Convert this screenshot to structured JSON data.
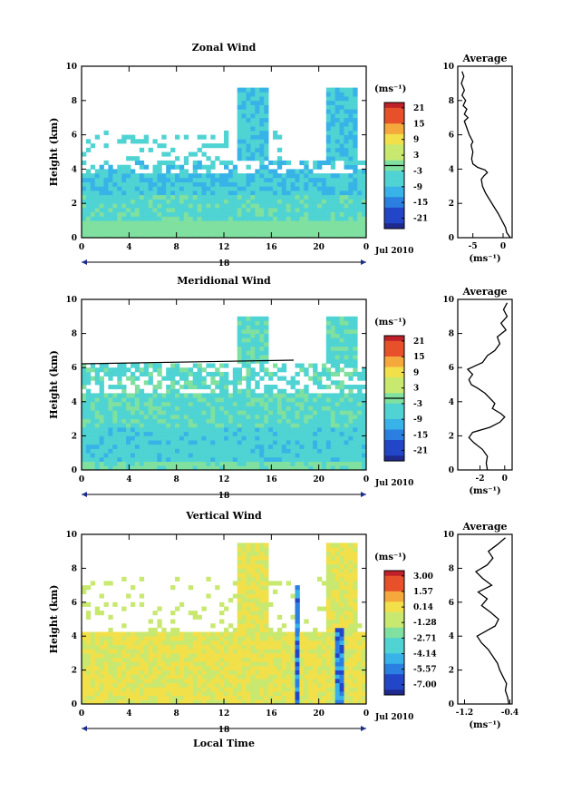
{
  "chart_data": [
    {
      "type": "heatmap",
      "title": "Zonal Wind",
      "xlabel": "",
      "ylabel": "Height (km)",
      "xticks": [
        "0",
        "4",
        "8",
        "12",
        "16",
        "20",
        "0"
      ],
      "yticks": [
        "0",
        "2",
        "4",
        "6",
        "8",
        "10"
      ],
      "ylim": [
        0,
        10
      ],
      "date_day": "18",
      "date_month": "Jul 2010",
      "colorbar": {
        "unit": "(ms⁻¹)",
        "labels": [
          "21",
          "15",
          "9",
          "3",
          "-3",
          "-9",
          "-15",
          "-21"
        ],
        "zero_line": true
      },
      "average": {
        "title": "Average",
        "xticks": [
          "-5",
          "0"
        ],
        "xlim": [
          -7.5,
          1.5
        ],
        "yticks": [
          "0",
          "2",
          "4",
          "6",
          "8",
          "10"
        ],
        "unit": "(ms⁻¹)",
        "profile": [
          [
            1.2,
            0
          ],
          [
            0.6,
            0.3
          ],
          [
            0.4,
            0.6
          ],
          [
            -0.2,
            1.0
          ],
          [
            -0.8,
            1.4
          ],
          [
            -1.5,
            1.8
          ],
          [
            -2.2,
            2.2
          ],
          [
            -2.9,
            2.6
          ],
          [
            -3.4,
            3.0
          ],
          [
            -3.6,
            3.4
          ],
          [
            -3.2,
            3.6
          ],
          [
            -2.6,
            3.8
          ],
          [
            -3.0,
            3.95
          ],
          [
            -4.2,
            4.1
          ],
          [
            -5.0,
            4.3
          ],
          [
            -5.2,
            4.6
          ],
          [
            -5.0,
            5.0
          ],
          [
            -5.3,
            5.4
          ],
          [
            -5.0,
            5.6
          ],
          [
            -5.6,
            6.0
          ],
          [
            -6.0,
            6.4
          ],
          [
            -6.4,
            6.8
          ],
          [
            -5.8,
            7.0
          ],
          [
            -6.4,
            7.2
          ],
          [
            -6.0,
            7.5
          ],
          [
            -6.6,
            7.7
          ],
          [
            -6.2,
            8.0
          ],
          [
            -6.8,
            8.3
          ],
          [
            -6.4,
            8.6
          ],
          [
            -6.9,
            9.0
          ],
          [
            -6.5,
            9.4
          ],
          [
            -6.8,
            9.7
          ]
        ]
      }
    },
    {
      "type": "heatmap",
      "title": "Meridional Wind",
      "xlabel": "",
      "ylabel": "Height (km)",
      "xticks": [
        "0",
        "4",
        "8",
        "12",
        "16",
        "20",
        "0"
      ],
      "yticks": [
        "0",
        "2",
        "4",
        "6",
        "8",
        "10"
      ],
      "ylim": [
        0,
        10
      ],
      "date_day": "18",
      "date_month": "Jul 2010",
      "colorbar": {
        "unit": "(ms⁻¹)",
        "labels": [
          "21",
          "15",
          "9",
          "3",
          "-3",
          "-9",
          "-15",
          "-21"
        ],
        "zero_line": true
      },
      "average": {
        "title": "Average",
        "xticks": [
          "-2",
          "0"
        ],
        "xlim": [
          -3.8,
          0.6
        ],
        "yticks": [
          "0",
          "2",
          "4",
          "6",
          "8",
          "10"
        ],
        "unit": "(ms⁻¹)",
        "profile": [
          [
            -1.4,
            0
          ],
          [
            -1.5,
            0.4
          ],
          [
            -1.4,
            0.8
          ],
          [
            -1.8,
            1.2
          ],
          [
            -2.5,
            1.6
          ],
          [
            -2.9,
            1.9
          ],
          [
            -2.6,
            2.2
          ],
          [
            -1.2,
            2.5
          ],
          [
            -0.4,
            2.8
          ],
          [
            0.0,
            3.1
          ],
          [
            -0.3,
            3.3
          ],
          [
            -1.0,
            3.6
          ],
          [
            -0.8,
            3.9
          ],
          [
            -1.2,
            4.2
          ],
          [
            -1.6,
            4.5
          ],
          [
            -2.2,
            4.8
          ],
          [
            -2.7,
            5.0
          ],
          [
            -2.9,
            5.3
          ],
          [
            -2.6,
            5.6
          ],
          [
            -3.0,
            5.9
          ],
          [
            -2.4,
            6.1
          ],
          [
            -1.8,
            6.3
          ],
          [
            -1.4,
            6.7
          ],
          [
            -0.8,
            7.0
          ],
          [
            -0.4,
            7.4
          ],
          [
            -0.6,
            7.8
          ],
          [
            0.1,
            8.2
          ],
          [
            -0.3,
            8.6
          ],
          [
            0.2,
            9.0
          ],
          [
            -0.1,
            9.4
          ],
          [
            0.2,
            9.8
          ]
        ]
      }
    },
    {
      "type": "heatmap",
      "title": "Vertical Wind",
      "xlabel": "Local Time",
      "ylabel": "Height (km)",
      "xticks": [
        "0",
        "4",
        "8",
        "12",
        "16",
        "20",
        "0"
      ],
      "yticks": [
        "0",
        "2",
        "4",
        "6",
        "8",
        "10"
      ],
      "ylim": [
        0,
        10
      ],
      "date_day": "18",
      "date_month": "Jul 2010",
      "colorbar": {
        "unit": "(ms⁻¹)",
        "labels": [
          "3.00",
          "1.57",
          "0.14",
          "-1.28",
          "-2.71",
          "-4.14",
          "-5.57",
          "-7.00"
        ],
        "zero_line": false
      },
      "average": {
        "title": "Average",
        "xticks": [
          "-1.2",
          "-0.4"
        ],
        "xlim": [
          -1.32,
          -0.36
        ],
        "yticks": [
          "0",
          "2",
          "4",
          "6",
          "8",
          "10"
        ],
        "unit": "(ms⁻¹)",
        "profile": [
          [
            -0.42,
            0
          ],
          [
            -0.44,
            0.4
          ],
          [
            -0.48,
            0.8
          ],
          [
            -0.46,
            1.2
          ],
          [
            -0.52,
            1.6
          ],
          [
            -0.58,
            2.0
          ],
          [
            -0.62,
            2.4
          ],
          [
            -0.7,
            2.8
          ],
          [
            -0.78,
            3.2
          ],
          [
            -0.9,
            3.6
          ],
          [
            -0.98,
            4.0
          ],
          [
            -0.82,
            4.3
          ],
          [
            -0.66,
            4.6
          ],
          [
            -0.6,
            5.0
          ],
          [
            -0.74,
            5.4
          ],
          [
            -0.9,
            5.8
          ],
          [
            -0.8,
            6.2
          ],
          [
            -0.96,
            6.6
          ],
          [
            -0.72,
            7.0
          ],
          [
            -0.88,
            7.4
          ],
          [
            -1.0,
            7.8
          ],
          [
            -0.8,
            8.2
          ],
          [
            -0.7,
            8.6
          ],
          [
            -0.78,
            9.0
          ],
          [
            -0.62,
            9.4
          ],
          [
            -0.48,
            9.8
          ]
        ]
      }
    }
  ]
}
